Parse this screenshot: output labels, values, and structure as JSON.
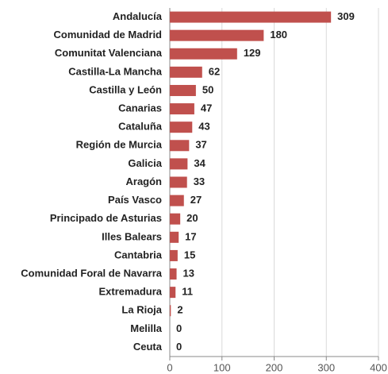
{
  "chart_data": {
    "type": "bar",
    "orientation": "horizontal",
    "categories": [
      "Andalucía",
      "Comunidad de Madrid",
      "Comunitat Valenciana",
      "Castilla-La Mancha",
      "Castilla y León",
      "Canarias",
      "Cataluña",
      "Región de Murcia",
      "Galicia",
      "Aragón",
      "País Vasco",
      "Principado de Asturias",
      "Illes Balears",
      "Cantabria",
      "Comunidad Foral de Navarra",
      "Extremadura",
      "La Rioja",
      "Melilla",
      "Ceuta"
    ],
    "values": [
      309,
      180,
      129,
      62,
      50,
      47,
      43,
      37,
      34,
      33,
      27,
      20,
      17,
      15,
      13,
      11,
      2,
      0,
      0
    ],
    "color": "#c0504d",
    "xlim": [
      0,
      400
    ],
    "xticks": [
      0,
      100,
      200,
      300,
      400
    ],
    "grid": true
  }
}
